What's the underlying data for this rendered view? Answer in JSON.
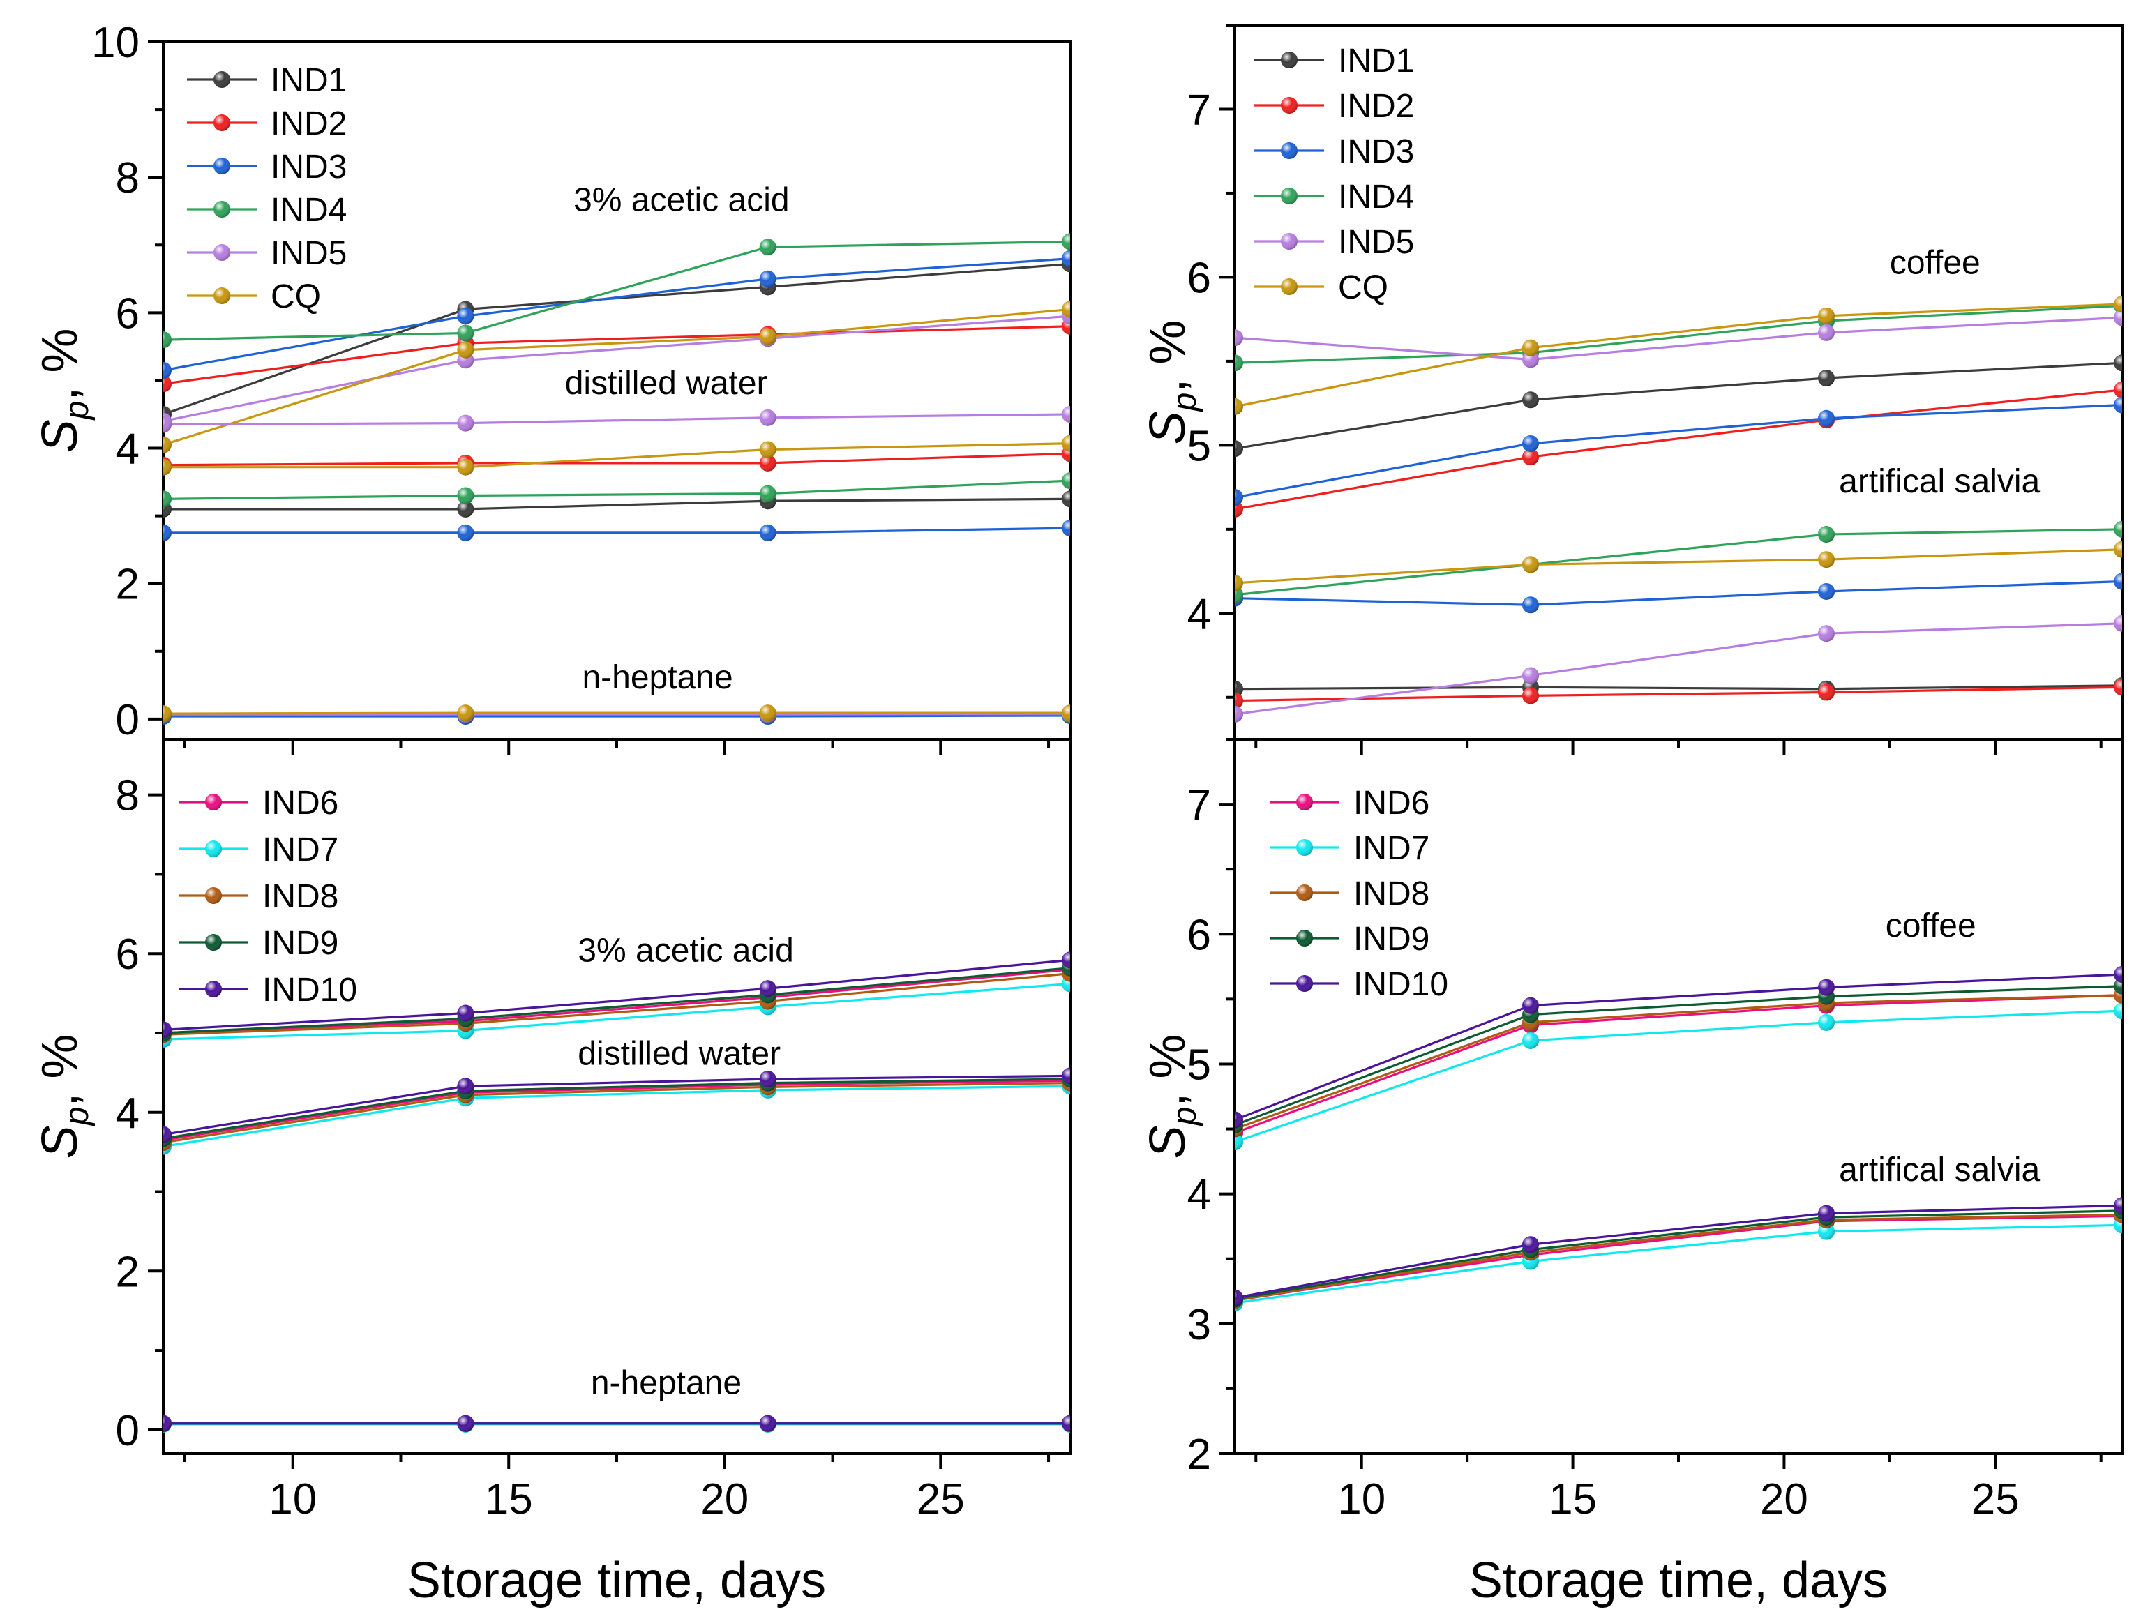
{
  "colors": {
    "IND1": "#3c3c3c",
    "IND2": "#ef1f1f",
    "IND3": "#1e62d6",
    "IND4": "#2fa35a",
    "IND5": "#b77de0",
    "CQ": "#c8960f",
    "IND6": "#ea0e7e",
    "IND7": "#10e8f0",
    "IND8": "#b15b12",
    "IND9": "#0d5a33",
    "IND10": "#4a159a"
  },
  "chart_data": [
    {
      "id": "top-left",
      "type": "line",
      "ylabel": "S_p, %",
      "ylabel_main": "S",
      "ylabel_sub": "p",
      "ylabel_tail": ", %",
      "xlim": [
        7,
        28
      ],
      "ylim": [
        -0.3,
        10
      ],
      "yticks": [
        "0",
        "2",
        "4",
        "6",
        "8",
        "10"
      ],
      "legend": [
        "IND1",
        "IND2",
        "IND3",
        "IND4",
        "IND5",
        "CQ"
      ],
      "annotations": [
        {
          "text": "3% acetic acid",
          "x": 16.5,
          "y": 7.5
        },
        {
          "text": "distilled water",
          "x": 16.3,
          "y": 4.8
        },
        {
          "text": "n-heptane",
          "x": 16.7,
          "y": 0.45
        }
      ],
      "x": [
        7,
        14,
        21,
        28
      ],
      "series": [
        {
          "name": "IND1",
          "group": "3% acetic acid",
          "values": [
            4.5,
            6.05,
            6.38,
            6.72
          ]
        },
        {
          "name": "IND2",
          "group": "3% acetic acid",
          "values": [
            4.95,
            5.55,
            5.68,
            5.8
          ]
        },
        {
          "name": "IND3",
          "group": "3% acetic acid",
          "values": [
            5.15,
            5.95,
            6.5,
            6.8
          ]
        },
        {
          "name": "IND4",
          "group": "3% acetic acid",
          "values": [
            5.6,
            5.7,
            6.97,
            7.05
          ]
        },
        {
          "name": "IND5",
          "group": "3% acetic acid",
          "values": [
            4.4,
            5.3,
            5.62,
            5.95
          ]
        },
        {
          "name": "CQ",
          "group": "3% acetic acid",
          "values": [
            4.05,
            5.45,
            5.65,
            6.05
          ]
        },
        {
          "name": "IND1",
          "group": "distilled water",
          "values": [
            3.1,
            3.1,
            3.22,
            3.25
          ]
        },
        {
          "name": "IND2",
          "group": "distilled water",
          "values": [
            3.75,
            3.78,
            3.78,
            3.92
          ]
        },
        {
          "name": "IND3",
          "group": "distilled water",
          "values": [
            2.75,
            2.75,
            2.75,
            2.82
          ]
        },
        {
          "name": "IND4",
          "group": "distilled water",
          "values": [
            3.25,
            3.3,
            3.33,
            3.52
          ]
        },
        {
          "name": "IND5",
          "group": "distilled water",
          "values": [
            4.35,
            4.37,
            4.45,
            4.5
          ]
        },
        {
          "name": "CQ",
          "group": "distilled water",
          "values": [
            3.72,
            3.72,
            3.98,
            4.07
          ]
        },
        {
          "name": "IND1",
          "group": "n-heptane",
          "values": [
            0.05,
            0.05,
            0.05,
            0.06
          ]
        },
        {
          "name": "IND2",
          "group": "n-heptane",
          "values": [
            0.06,
            0.06,
            0.06,
            0.06
          ]
        },
        {
          "name": "IND3",
          "group": "n-heptane",
          "values": [
            0.04,
            0.04,
            0.04,
            0.05
          ]
        },
        {
          "name": "IND4",
          "group": "n-heptane",
          "values": [
            0.06,
            0.07,
            0.07,
            0.07
          ]
        },
        {
          "name": "IND5",
          "group": "n-heptane",
          "values": [
            0.07,
            0.07,
            0.07,
            0.08
          ]
        },
        {
          "name": "CQ",
          "group": "n-heptane",
          "values": [
            0.08,
            0.09,
            0.09,
            0.09
          ]
        }
      ]
    },
    {
      "id": "top-right",
      "type": "line",
      "ylabel": "S_p, %",
      "ylabel_main": "S",
      "ylabel_sub": "p",
      "ylabel_tail": ", %",
      "xlim": [
        7,
        28
      ],
      "ylim": [
        3.25,
        7.5
      ],
      "yticks": [
        "4",
        "5",
        "6",
        "7"
      ],
      "legend": [
        "IND1",
        "IND2",
        "IND3",
        "IND4",
        "IND5",
        "CQ"
      ],
      "annotations": [
        {
          "text": "coffee",
          "x": 22.5,
          "y": 6.02
        },
        {
          "text": "artifical salvia",
          "x": 21.3,
          "y": 4.72
        }
      ],
      "x": [
        7,
        14,
        21,
        28
      ],
      "series": [
        {
          "name": "IND1",
          "group": "coffee",
          "values": [
            4.98,
            5.27,
            5.4,
            5.49
          ]
        },
        {
          "name": "IND2",
          "group": "coffee",
          "values": [
            4.62,
            4.93,
            5.15,
            5.33
          ]
        },
        {
          "name": "IND3",
          "group": "coffee",
          "values": [
            4.69,
            5.01,
            5.16,
            5.24
          ]
        },
        {
          "name": "IND4",
          "group": "coffee",
          "values": [
            5.49,
            5.55,
            5.74,
            5.83
          ]
        },
        {
          "name": "IND5",
          "group": "coffee",
          "values": [
            5.64,
            5.51,
            5.67,
            5.76
          ]
        },
        {
          "name": "CQ",
          "group": "coffee",
          "values": [
            5.23,
            5.58,
            5.77,
            5.84
          ]
        },
        {
          "name": "IND1",
          "group": "artifical salvia",
          "values": [
            3.55,
            3.56,
            3.55,
            3.57
          ]
        },
        {
          "name": "IND2",
          "group": "artifical salvia",
          "values": [
            3.48,
            3.51,
            3.53,
            3.56
          ]
        },
        {
          "name": "IND3",
          "group": "artifical salvia",
          "values": [
            4.09,
            4.05,
            4.13,
            4.19
          ]
        },
        {
          "name": "IND4",
          "group": "artifical salvia",
          "values": [
            4.11,
            4.29,
            4.47,
            4.5
          ]
        },
        {
          "name": "IND5",
          "group": "artifical salvia",
          "values": [
            3.4,
            3.63,
            3.88,
            3.94
          ]
        },
        {
          "name": "CQ",
          "group": "artifical salvia",
          "values": [
            4.18,
            4.29,
            4.32,
            4.38
          ]
        }
      ]
    },
    {
      "id": "bottom-left",
      "type": "line",
      "ylabel": "S_p, %",
      "ylabel_main": "S",
      "ylabel_sub": "p",
      "ylabel_tail": ", %",
      "xlabel": "Storage time, days",
      "xlim": [
        7,
        28
      ],
      "ylim": [
        -0.3,
        8.7
      ],
      "yticks": [
        "0",
        "2",
        "4",
        "6",
        "8"
      ],
      "xticks": [
        "10",
        "15",
        "20",
        "25"
      ],
      "legend": [
        "IND6",
        "IND7",
        "IND8",
        "IND9",
        "IND10"
      ],
      "annotations": [
        {
          "text": "3% acetic acid",
          "x": 16.6,
          "y": 5.9
        },
        {
          "text": "distilled water",
          "x": 16.6,
          "y": 4.6
        },
        {
          "text": "n-heptane",
          "x": 16.9,
          "y": 0.45
        }
      ],
      "x": [
        7,
        14,
        21,
        28
      ],
      "series": [
        {
          "name": "IND6",
          "group": "3% acetic acid",
          "values": [
            5.0,
            5.15,
            5.45,
            5.8
          ]
        },
        {
          "name": "IND7",
          "group": "3% acetic acid",
          "values": [
            4.92,
            5.03,
            5.33,
            5.62
          ]
        },
        {
          "name": "IND8",
          "group": "3% acetic acid",
          "values": [
            4.98,
            5.12,
            5.4,
            5.75
          ]
        },
        {
          "name": "IND9",
          "group": "3% acetic acid",
          "values": [
            5.0,
            5.18,
            5.48,
            5.82
          ]
        },
        {
          "name": "IND10",
          "group": "3% acetic acid",
          "values": [
            5.04,
            5.25,
            5.56,
            5.92
          ]
        },
        {
          "name": "IND6",
          "group": "distilled water",
          "values": [
            3.65,
            4.25,
            4.35,
            4.4
          ]
        },
        {
          "name": "IND7",
          "group": "distilled water",
          "values": [
            3.57,
            4.18,
            4.28,
            4.33
          ]
        },
        {
          "name": "IND8",
          "group": "distilled water",
          "values": [
            3.62,
            4.22,
            4.32,
            4.37
          ]
        },
        {
          "name": "IND9",
          "group": "distilled water",
          "values": [
            3.67,
            4.27,
            4.37,
            4.42
          ]
        },
        {
          "name": "IND10",
          "group": "distilled water",
          "values": [
            3.72,
            4.33,
            4.42,
            4.46
          ]
        },
        {
          "name": "IND6",
          "group": "n-heptane",
          "values": [
            0.08,
            0.08,
            0.08,
            0.08
          ]
        },
        {
          "name": "IND7",
          "group": "n-heptane",
          "values": [
            0.07,
            0.07,
            0.07,
            0.07
          ]
        },
        {
          "name": "IND8",
          "group": "n-heptane",
          "values": [
            0.08,
            0.08,
            0.08,
            0.08
          ]
        },
        {
          "name": "IND9",
          "group": "n-heptane",
          "values": [
            0.08,
            0.08,
            0.08,
            0.08
          ]
        },
        {
          "name": "IND10",
          "group": "n-heptane",
          "values": [
            0.08,
            0.08,
            0.08,
            0.08
          ]
        }
      ]
    },
    {
      "id": "bottom-right",
      "type": "line",
      "ylabel": "S_p, %",
      "ylabel_main": "S",
      "ylabel_sub": "p",
      "ylabel_tail": ", %",
      "xlabel": "Storage time, days",
      "xlim": [
        7,
        28
      ],
      "ylim": [
        2,
        7.5
      ],
      "yticks": [
        "2",
        "3",
        "4",
        "5",
        "6",
        "7"
      ],
      "xticks": [
        "10",
        "15",
        "20",
        "25"
      ],
      "legend": [
        "IND6",
        "IND7",
        "IND8",
        "IND9",
        "IND10"
      ],
      "annotations": [
        {
          "text": "coffee",
          "x": 22.4,
          "y": 5.98
        },
        {
          "text": "artifical salvia",
          "x": 21.3,
          "y": 4.1
        }
      ],
      "x": [
        7,
        14,
        21,
        28
      ],
      "series": [
        {
          "name": "IND6",
          "group": "coffee",
          "values": [
            4.47,
            5.3,
            5.45,
            5.53
          ]
        },
        {
          "name": "IND7",
          "group": "coffee",
          "values": [
            4.4,
            5.18,
            5.32,
            5.41
          ]
        },
        {
          "name": "IND8",
          "group": "coffee",
          "values": [
            4.5,
            5.32,
            5.47,
            5.53
          ]
        },
        {
          "name": "IND9",
          "group": "coffee",
          "values": [
            4.53,
            5.38,
            5.52,
            5.6
          ]
        },
        {
          "name": "IND10",
          "group": "coffee",
          "values": [
            4.57,
            5.45,
            5.59,
            5.69
          ]
        },
        {
          "name": "IND6",
          "group": "artifical salvia",
          "values": [
            3.18,
            3.53,
            3.79,
            3.83
          ]
        },
        {
          "name": "IND7",
          "group": "artifical salvia",
          "values": [
            3.16,
            3.48,
            3.71,
            3.76
          ]
        },
        {
          "name": "IND8",
          "group": "artifical salvia",
          "values": [
            3.18,
            3.55,
            3.8,
            3.84
          ]
        },
        {
          "name": "IND9",
          "group": "artifical salvia",
          "values": [
            3.19,
            3.57,
            3.82,
            3.87
          ]
        },
        {
          "name": "IND10",
          "group": "artifical salvia",
          "values": [
            3.2,
            3.61,
            3.85,
            3.91
          ]
        }
      ]
    }
  ]
}
